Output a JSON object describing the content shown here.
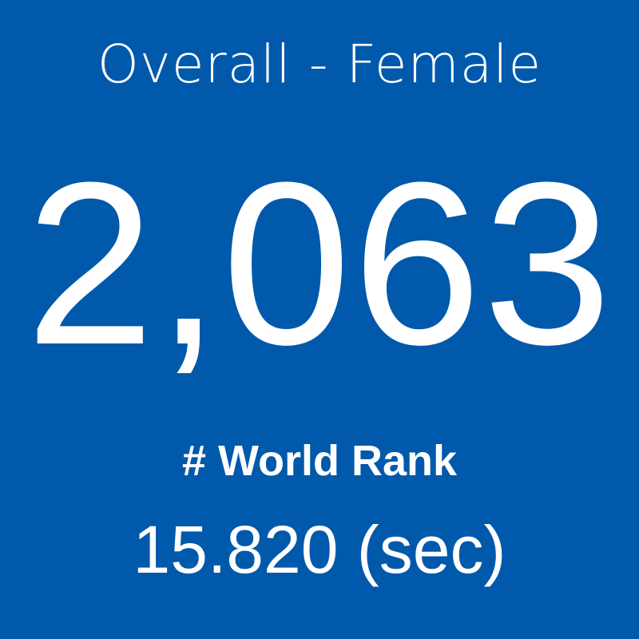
{
  "title": "Overall - Female",
  "rank": "2,063",
  "rank_label": "# World Rank",
  "time": "15.820 (sec)"
}
